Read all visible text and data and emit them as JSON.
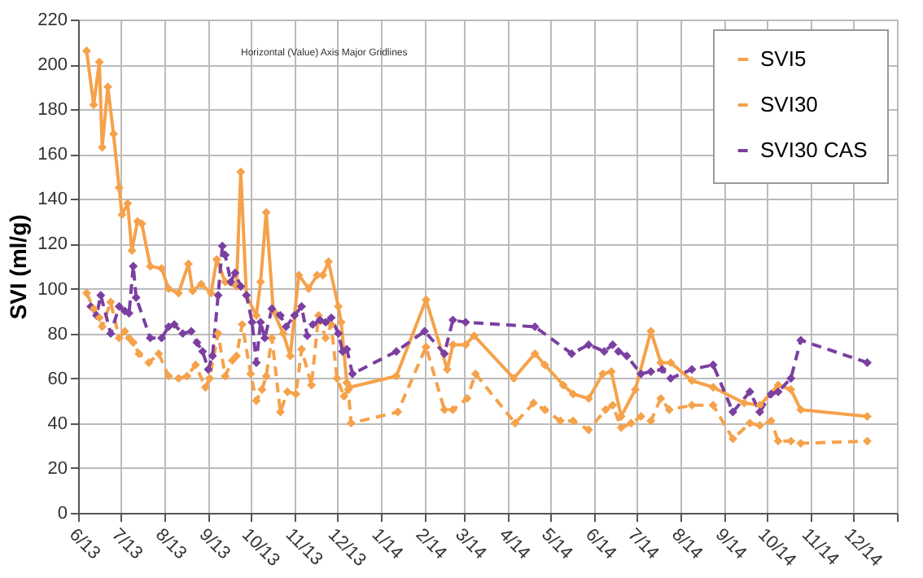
{
  "chart_data": {
    "type": "line",
    "ylabel": "SVI (ml/g)",
    "ylim": [
      0,
      220
    ],
    "yticks": [
      0,
      20,
      40,
      60,
      80,
      100,
      120,
      140,
      160,
      180,
      200,
      220
    ],
    "xlim": [
      "2013-06-01",
      "2015-01-01"
    ],
    "xticks": [
      {
        "value": "2013-06-01",
        "label": "6/13"
      },
      {
        "value": "2013-07-01",
        "label": "7/13"
      },
      {
        "value": "2013-08-01",
        "label": "8/13"
      },
      {
        "value": "2013-09-01",
        "label": "9/13"
      },
      {
        "value": "2013-10-01",
        "label": "10/13"
      },
      {
        "value": "2013-11-01",
        "label": "11/13"
      },
      {
        "value": "2013-12-01",
        "label": "12/13"
      },
      {
        "value": "2014-01-01",
        "label": "1/14"
      },
      {
        "value": "2014-02-01",
        "label": "2/14"
      },
      {
        "value": "2014-03-01",
        "label": "3/14"
      },
      {
        "value": "2014-04-01",
        "label": "4/14"
      },
      {
        "value": "2014-05-01",
        "label": "5/14"
      },
      {
        "value": "2014-06-01",
        "label": "6/14"
      },
      {
        "value": "2014-07-01",
        "label": "7/14"
      },
      {
        "value": "2014-08-01",
        "label": "8/14"
      },
      {
        "value": "2014-09-01",
        "label": "9/14"
      },
      {
        "value": "2014-10-01",
        "label": "10/14"
      },
      {
        "value": "2014-11-01",
        "label": "11/14"
      },
      {
        "value": "2014-12-01",
        "label": "12/14"
      },
      {
        "value": "2015-01-01",
        "label": null
      }
    ],
    "grid": true,
    "legend": "top right",
    "marker": "diamond",
    "annotations": [
      "Horizontal (Value) Axis Major Gridlines"
    ],
    "series": [
      {
        "name": "SVI5",
        "color": "#f5a24b",
        "line_style": "solid",
        "x": [
          "2013-06-07",
          "2013-06-12",
          "2013-06-16",
          "2013-06-18",
          "2013-06-22",
          "2013-06-26",
          "2013-06-30",
          "2013-07-02",
          "2013-07-06",
          "2013-07-09",
          "2013-07-13",
          "2013-07-16",
          "2013-07-22",
          "2013-07-30",
          "2013-08-04",
          "2013-08-11",
          "2013-08-18",
          "2013-08-21",
          "2013-08-27",
          "2013-09-03",
          "2013-09-07",
          "2013-09-13",
          "2013-09-21",
          "2013-09-24",
          "2013-09-28",
          "2013-10-05",
          "2013-10-08",
          "2013-10-12",
          "2013-10-17",
          "2013-10-24",
          "2013-10-29",
          "2013-11-04",
          "2013-11-11",
          "2013-11-17",
          "2013-11-21",
          "2013-11-25",
          "2013-12-02",
          "2013-12-04",
          "2013-12-08",
          "2013-12-10",
          "2014-01-12",
          "2014-02-02",
          "2014-02-17",
          "2014-02-21",
          "2014-03-02",
          "2014-03-08",
          "2014-04-05",
          "2014-04-20",
          "2014-04-27",
          "2014-05-10",
          "2014-05-17",
          "2014-05-28",
          "2014-06-07",
          "2014-06-13",
          "2014-06-20",
          "2014-06-30",
          "2014-07-11",
          "2014-07-18",
          "2014-07-25",
          "2014-08-09",
          "2014-08-24",
          "2014-09-15",
          "2014-09-26",
          "2014-10-09",
          "2014-10-18",
          "2014-10-25",
          "2014-12-11"
        ],
        "values": [
          206,
          182,
          201,
          163,
          190,
          169,
          145,
          133,
          138,
          117,
          130,
          129,
          110,
          109,
          100,
          98,
          111,
          99,
          102,
          98,
          113,
          103,
          101,
          152,
          97,
          88,
          103,
          134,
          90,
          80,
          70,
          106,
          100,
          106,
          106,
          112,
          92,
          85,
          58,
          56,
          61,
          95,
          64,
          75,
          75,
          79,
          60,
          71,
          66,
          57,
          53,
          51,
          62,
          63,
          43,
          55,
          81,
          67,
          67,
          59,
          56,
          49,
          48,
          57,
          55,
          46,
          43
        ]
      },
      {
        "name": "SVI30",
        "color": "#f5a24b",
        "line_style": "dashed",
        "x": [
          "2013-06-07",
          "2013-06-12",
          "2013-06-16",
          "2013-06-18",
          "2013-06-24",
          "2013-06-30",
          "2013-07-04",
          "2013-07-07",
          "2013-07-10",
          "2013-07-14",
          "2013-07-21",
          "2013-07-28",
          "2013-08-04",
          "2013-08-11",
          "2013-08-17",
          "2013-08-23",
          "2013-08-30",
          "2013-09-02",
          "2013-09-08",
          "2013-09-13",
          "2013-09-18",
          "2013-09-21",
          "2013-09-25",
          "2013-10-01",
          "2013-10-05",
          "2013-10-09",
          "2013-10-12",
          "2013-10-16",
          "2013-10-22",
          "2013-10-27",
          "2013-11-02",
          "2013-11-06",
          "2013-11-13",
          "2013-11-18",
          "2013-11-23",
          "2013-11-27",
          "2013-12-01",
          "2013-12-06",
          "2013-12-09",
          "2013-12-11",
          "2014-01-13",
          "2014-02-02",
          "2014-02-15",
          "2014-02-21",
          "2014-03-03",
          "2014-03-09",
          "2014-04-06",
          "2014-04-19",
          "2014-04-27",
          "2014-05-08",
          "2014-05-17",
          "2014-05-28",
          "2014-06-09",
          "2014-06-14",
          "2014-06-20",
          "2014-06-27",
          "2014-07-04",
          "2014-07-11",
          "2014-07-18",
          "2014-07-24",
          "2014-08-09",
          "2014-08-24",
          "2014-09-07",
          "2014-09-19",
          "2014-09-26",
          "2014-10-04",
          "2014-10-09",
          "2014-10-18",
          "2014-10-25",
          "2014-12-11"
        ],
        "values": [
          98,
          91,
          87,
          83,
          94,
          78,
          81,
          78,
          76,
          71,
          67,
          71,
          61,
          60,
          61,
          66,
          56,
          60,
          80,
          61,
          68,
          70,
          84,
          62,
          50,
          55,
          61,
          78,
          45,
          54,
          53,
          73,
          57,
          88,
          78,
          84,
          60,
          52,
          55,
          40,
          45,
          74,
          46,
          46,
          51,
          62,
          40,
          49,
          46,
          41,
          41,
          37,
          46,
          48,
          38,
          40,
          43,
          41,
          51,
          46,
          48,
          48,
          33,
          40,
          39,
          41,
          32,
          32,
          31,
          32
        ]
      },
      {
        "name": "SVI30 CAS",
        "color": "#7b3fa0",
        "line_style": "dashed",
        "x": [
          "2013-06-10",
          "2013-06-14",
          "2013-06-17",
          "2013-06-24",
          "2013-06-30",
          "2013-07-04",
          "2013-07-07",
          "2013-07-10",
          "2013-07-12",
          "2013-07-22",
          "2013-07-30",
          "2013-08-04",
          "2013-08-08",
          "2013-08-14",
          "2013-08-20",
          "2013-08-24",
          "2013-08-28",
          "2013-09-01",
          "2013-09-04",
          "2013-09-08",
          "2013-09-11",
          "2013-09-13",
          "2013-09-17",
          "2013-09-20",
          "2013-09-24",
          "2013-09-28",
          "2013-10-02",
          "2013-10-05",
          "2013-10-08",
          "2013-10-11",
          "2013-10-16",
          "2013-10-22",
          "2013-10-26",
          "2013-11-01",
          "2013-11-06",
          "2013-11-10",
          "2013-11-14",
          "2013-11-19",
          "2013-11-23",
          "2013-11-27",
          "2013-12-02",
          "2013-12-05",
          "2013-12-08",
          "2013-12-12",
          "2014-01-12",
          "2014-02-01",
          "2014-02-15",
          "2014-02-21",
          "2014-03-02",
          "2014-04-20",
          "2014-05-16",
          "2014-05-28",
          "2014-06-08",
          "2014-06-14",
          "2014-06-18",
          "2014-06-24",
          "2014-07-04",
          "2014-07-11",
          "2014-07-19",
          "2014-07-25",
          "2014-08-09",
          "2014-08-24",
          "2014-09-07",
          "2014-09-19",
          "2014-09-26",
          "2014-10-04",
          "2014-10-09",
          "2014-10-18",
          "2014-10-25",
          "2014-12-11"
        ],
        "values": [
          92,
          88,
          97,
          80,
          92,
          90,
          89,
          110,
          96,
          78,
          78,
          83,
          84,
          80,
          81,
          76,
          72,
          64,
          70,
          97,
          119,
          115,
          103,
          107,
          101,
          97,
          85,
          67,
          85,
          78,
          91,
          88,
          83,
          88,
          92,
          79,
          84,
          86,
          85,
          87,
          80,
          72,
          73,
          62,
          72,
          81,
          71,
          86,
          85,
          83,
          71,
          75,
          72,
          75,
          72,
          70,
          62,
          63,
          64,
          60,
          64,
          66,
          45,
          54,
          45,
          53,
          54,
          60,
          77,
          67
        ]
      }
    ]
  }
}
